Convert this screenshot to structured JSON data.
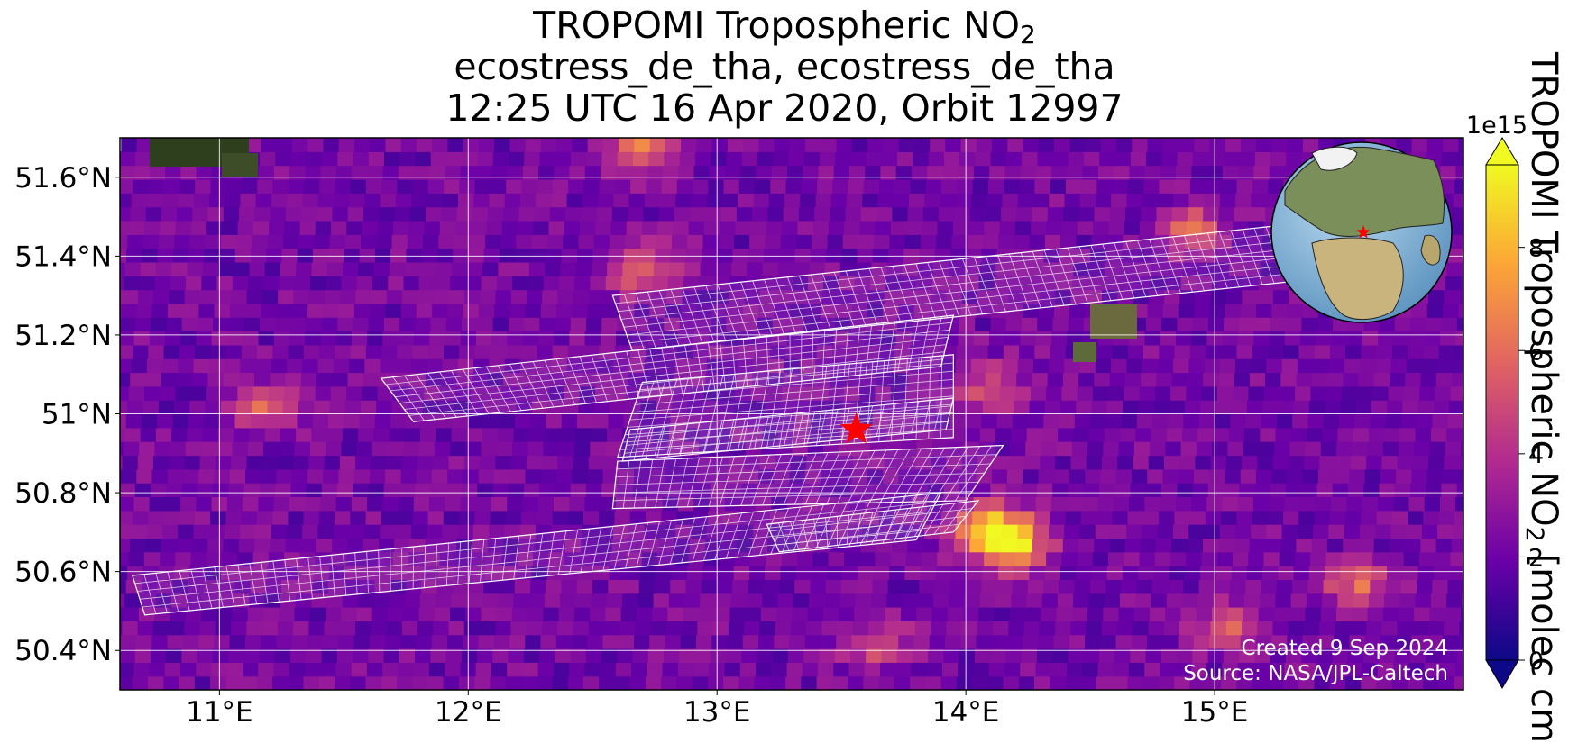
{
  "title": {
    "line1_main": "TROPOMI Tropospheric NO",
    "line1_sub": "2",
    "line2": "ecostress_de_tha, ecostress_de_tha",
    "line3": "12:25 UTC 16 Apr 2020, Orbit 12997"
  },
  "colorbar": {
    "label_main": "TROPOMI Tropospheric NO",
    "label_sub": "2",
    "label_units": " [molec cm",
    "exponent": "1e15",
    "ticks": [
      "0",
      "2",
      "4",
      "6",
      "8"
    ],
    "range": [
      0,
      9.6
    ],
    "extend": "both",
    "colormap": "plasma",
    "colors": [
      "#0d0887",
      "#6a00a8",
      "#b12a90",
      "#e16462",
      "#fca636",
      "#f0f921"
    ]
  },
  "annotations": {
    "created": "Created 9 Sep 2024",
    "source": "Source: NASA/JPL-Caltech"
  },
  "chart_data": {
    "type": "heatmap",
    "projection": "geographic",
    "lon_range": [
      10.6,
      16.0
    ],
    "lat_range": [
      50.3,
      51.7
    ],
    "xticks": [
      {
        "value": 11,
        "label": "11°E"
      },
      {
        "value": 12,
        "label": "12°E"
      },
      {
        "value": 13,
        "label": "13°E"
      },
      {
        "value": 14,
        "label": "14°E"
      },
      {
        "value": 15,
        "label": "15°E"
      }
    ],
    "yticks": [
      {
        "value": 50.4,
        "label": "50.4°N"
      },
      {
        "value": 50.6,
        "label": "50.6°N"
      },
      {
        "value": 50.8,
        "label": "50.8°N"
      },
      {
        "value": 51.0,
        "label": "51°N"
      },
      {
        "value": 51.2,
        "label": "51.2°N"
      },
      {
        "value": 51.4,
        "label": "51.4°N"
      },
      {
        "value": 51.6,
        "label": "51.6°N"
      }
    ],
    "grid": true,
    "marker": {
      "lon": 13.56,
      "lat": 50.96,
      "symbol": "red-star"
    },
    "hotspots": [
      {
        "lon": 14.1,
        "lat": 50.65,
        "value": 9.0
      },
      {
        "lon": 14.0,
        "lat": 50.7,
        "value": 7.5
      },
      {
        "lon": 12.45,
        "lat": 51.65,
        "value": 6.5
      },
      {
        "lon": 12.5,
        "lat": 51.35,
        "value": 6.5
      },
      {
        "lon": 11.05,
        "lat": 51.0,
        "value": 6.0
      },
      {
        "lon": 14.7,
        "lat": 51.45,
        "value": 6.0
      },
      {
        "lon": 15.5,
        "lat": 50.55,
        "value": 6.0
      },
      {
        "lon": 15.0,
        "lat": 50.45,
        "value": 5.5
      },
      {
        "lon": 13.6,
        "lat": 50.4,
        "value": 5.5
      },
      {
        "lon": 13.95,
        "lat": 51.05,
        "value": 5.5
      }
    ],
    "ecostress_swaths": [
      {
        "corners": [
          [
            12.58,
            51.3
          ],
          [
            15.3,
            51.48
          ],
          [
            15.38,
            51.34
          ],
          [
            12.66,
            51.16
          ]
        ]
      },
      {
        "corners": [
          [
            11.65,
            51.09
          ],
          [
            13.95,
            51.25
          ],
          [
            13.9,
            51.12
          ],
          [
            11.78,
            50.98
          ]
        ]
      },
      {
        "corners": [
          [
            12.7,
            51.08
          ],
          [
            13.95,
            51.15
          ],
          [
            13.95,
            50.94
          ],
          [
            12.6,
            50.89
          ]
        ]
      },
      {
        "corners": [
          [
            12.65,
            50.96
          ],
          [
            13.95,
            51.04
          ],
          [
            13.92,
            50.96
          ],
          [
            12.62,
            50.88
          ]
        ]
      },
      {
        "corners": [
          [
            12.6,
            50.88
          ],
          [
            14.15,
            50.92
          ],
          [
            14.0,
            50.78
          ],
          [
            12.58,
            50.76
          ]
        ]
      },
      {
        "corners": [
          [
            10.65,
            50.59
          ],
          [
            13.9,
            50.8
          ],
          [
            13.8,
            50.68
          ],
          [
            10.7,
            50.49
          ]
        ]
      },
      {
        "corners": [
          [
            13.2,
            50.72
          ],
          [
            14.05,
            50.78
          ],
          [
            13.95,
            50.7
          ],
          [
            13.25,
            50.65
          ]
        ]
      }
    ]
  }
}
